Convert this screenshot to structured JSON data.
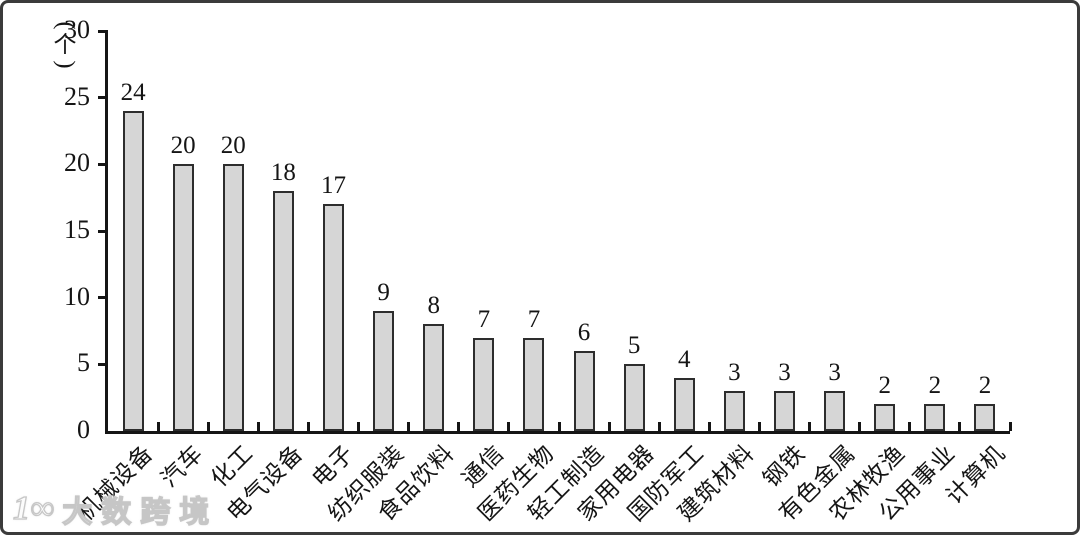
{
  "chart_data": {
    "type": "bar",
    "title": "",
    "xlabel": "",
    "ylabel": "个",
    "unit_label": {
      "open": "(",
      "char": "个",
      "close": ")"
    },
    "categories": [
      "机械设备",
      "汽车",
      "化工",
      "电气设备",
      "电子",
      "纺织服装",
      "食品饮料",
      "通信",
      "医药生物",
      "轻工制造",
      "家用电器",
      "国防军工",
      "建筑材料",
      "钢铁",
      "有色金属",
      "农林牧渔",
      "公用事业",
      "计算机"
    ],
    "values": [
      24,
      20,
      20,
      18,
      17,
      9,
      8,
      7,
      7,
      6,
      5,
      4,
      3,
      3,
      3,
      2,
      2,
      2
    ],
    "ylim": [
      0,
      30
    ],
    "yticks": [
      0,
      5,
      10,
      15,
      20,
      25,
      30
    ],
    "grid": false,
    "legend_position": "none",
    "bar_fill_color": "#d6d6d6",
    "bar_border_color": "#2d2d2d",
    "axis_color": "#151515",
    "xtick_direction": "in"
  },
  "watermark": {
    "logo": "1∞",
    "text": "大数跨境"
  }
}
